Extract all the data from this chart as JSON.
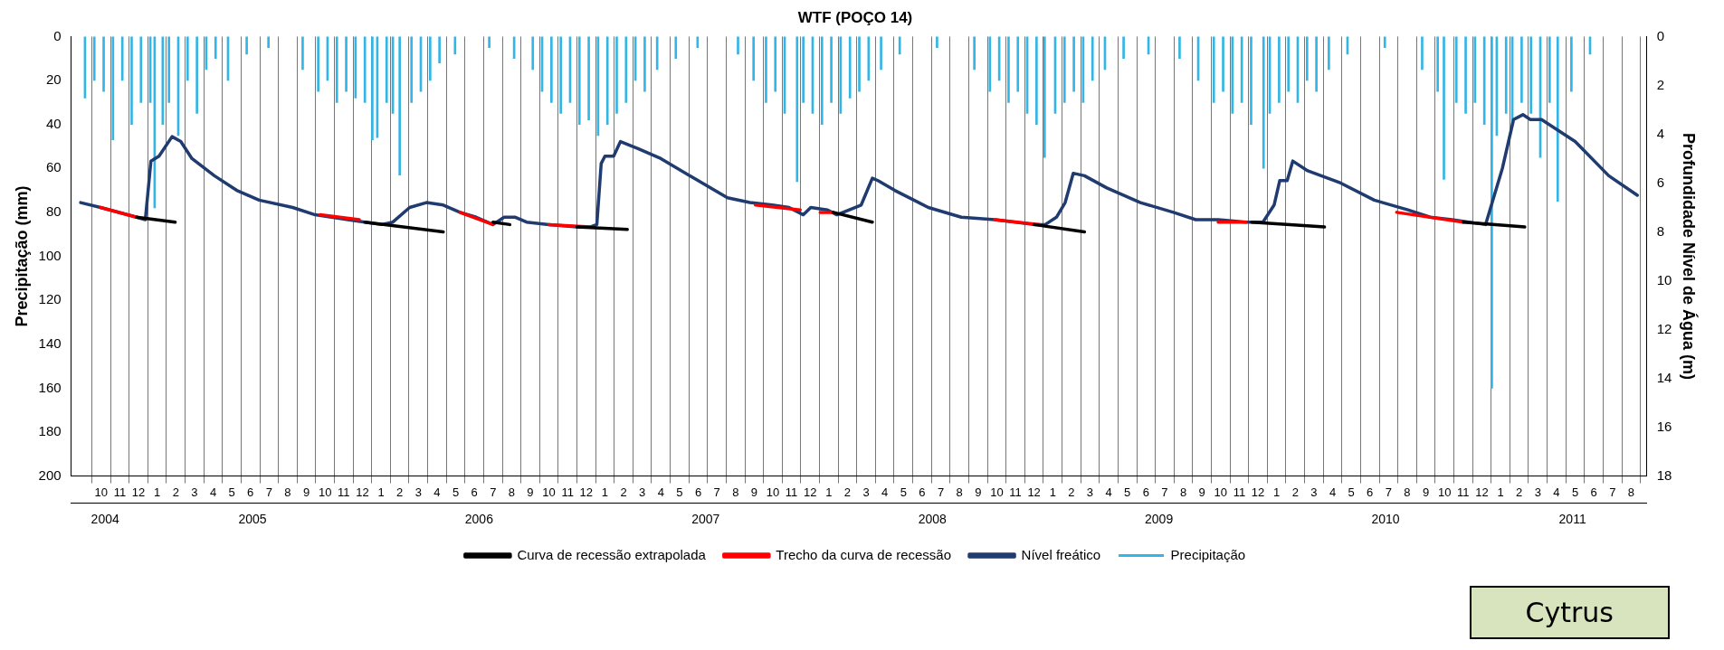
{
  "chart_data": {
    "type": "line",
    "title": "WTF (POÇO 14)",
    "ylabel": "Precipitação (mm)",
    "y2label": "Profundidade Nível de Água (m)",
    "xlim": [
      "2004-09-13",
      "2011-08-26"
    ],
    "ylim": [
      200,
      0
    ],
    "yticks": [
      0,
      20,
      40,
      60,
      80,
      100,
      120,
      140,
      160,
      180,
      200
    ],
    "y2lim": [
      18,
      0
    ],
    "y2ticks": [
      0,
      2,
      4,
      6,
      8,
      10,
      12,
      14,
      16,
      18
    ],
    "xticks": [
      {
        "value": "2004-10-16",
        "label": "10"
      },
      {
        "value": "2004-11-16",
        "label": "11"
      },
      {
        "value": "2004-12-16",
        "label": "12"
      },
      {
        "value": "2005-01-16",
        "label": "1"
      },
      {
        "value": "2005-02-16",
        "label": "2"
      },
      {
        "value": "2005-03-16",
        "label": "3"
      },
      {
        "value": "2005-04-16",
        "label": "4"
      },
      {
        "value": "2005-05-16",
        "label": "5"
      },
      {
        "value": "2005-06-16",
        "label": "6"
      },
      {
        "value": "2005-07-16",
        "label": "7"
      },
      {
        "value": "2005-08-16",
        "label": "8"
      },
      {
        "value": "2005-09-16",
        "label": "9"
      },
      {
        "value": "2005-10-16",
        "label": "10"
      },
      {
        "value": "2005-11-16",
        "label": "11"
      },
      {
        "value": "2005-12-16",
        "label": "12"
      },
      {
        "value": "2006-01-16",
        "label": "1"
      },
      {
        "value": "2006-02-16",
        "label": "2"
      },
      {
        "value": "2006-03-16",
        "label": "3"
      },
      {
        "value": "2006-04-16",
        "label": "4"
      },
      {
        "value": "2006-05-16",
        "label": "5"
      },
      {
        "value": "2006-06-16",
        "label": "6"
      },
      {
        "value": "2006-07-16",
        "label": "7"
      },
      {
        "value": "2006-08-16",
        "label": "8"
      },
      {
        "value": "2006-09-16",
        "label": "9"
      },
      {
        "value": "2006-10-16",
        "label": "10"
      },
      {
        "value": "2006-11-16",
        "label": "11"
      },
      {
        "value": "2006-12-16",
        "label": "12"
      },
      {
        "value": "2007-01-16",
        "label": "1"
      },
      {
        "value": "2007-02-16",
        "label": "2"
      },
      {
        "value": "2007-03-16",
        "label": "3"
      },
      {
        "value": "2007-04-16",
        "label": "4"
      },
      {
        "value": "2007-05-16",
        "label": "5"
      },
      {
        "value": "2007-06-16",
        "label": "6"
      },
      {
        "value": "2007-07-16",
        "label": "7"
      },
      {
        "value": "2007-08-16",
        "label": "8"
      },
      {
        "value": "2007-09-16",
        "label": "9"
      },
      {
        "value": "2007-10-16",
        "label": "10"
      },
      {
        "value": "2007-11-16",
        "label": "11"
      },
      {
        "value": "2007-12-16",
        "label": "12"
      },
      {
        "value": "2008-01-16",
        "label": "1"
      },
      {
        "value": "2008-02-16",
        "label": "2"
      },
      {
        "value": "2008-03-16",
        "label": "3"
      },
      {
        "value": "2008-04-16",
        "label": "4"
      },
      {
        "value": "2008-05-16",
        "label": "5"
      },
      {
        "value": "2008-06-16",
        "label": "6"
      },
      {
        "value": "2008-07-16",
        "label": "7"
      },
      {
        "value": "2008-08-16",
        "label": "8"
      },
      {
        "value": "2008-09-16",
        "label": "9"
      },
      {
        "value": "2008-10-16",
        "label": "10"
      },
      {
        "value": "2008-11-16",
        "label": "11"
      },
      {
        "value": "2008-12-16",
        "label": "12"
      },
      {
        "value": "2009-01-16",
        "label": "1"
      },
      {
        "value": "2009-02-16",
        "label": "2"
      },
      {
        "value": "2009-03-16",
        "label": "3"
      },
      {
        "value": "2009-04-16",
        "label": "4"
      },
      {
        "value": "2009-05-16",
        "label": "5"
      },
      {
        "value": "2009-06-16",
        "label": "6"
      },
      {
        "value": "2009-07-16",
        "label": "7"
      },
      {
        "value": "2009-08-16",
        "label": "8"
      },
      {
        "value": "2009-09-16",
        "label": "9"
      },
      {
        "value": "2009-10-16",
        "label": "10"
      },
      {
        "value": "2009-11-16",
        "label": "11"
      },
      {
        "value": "2009-12-16",
        "label": "12"
      },
      {
        "value": "2010-01-16",
        "label": "1"
      },
      {
        "value": "2010-02-16",
        "label": "2"
      },
      {
        "value": "2010-03-16",
        "label": "3"
      },
      {
        "value": "2010-04-16",
        "label": "4"
      },
      {
        "value": "2010-05-16",
        "label": "5"
      },
      {
        "value": "2010-06-16",
        "label": "6"
      },
      {
        "value": "2010-07-16",
        "label": "7"
      },
      {
        "value": "2010-08-16",
        "label": "8"
      },
      {
        "value": "2010-09-16",
        "label": "9"
      },
      {
        "value": "2010-10-16",
        "label": "10"
      },
      {
        "value": "2010-11-16",
        "label": "11"
      },
      {
        "value": "2010-12-16",
        "label": "12"
      },
      {
        "value": "2011-01-16",
        "label": "1"
      },
      {
        "value": "2011-02-16",
        "label": "2"
      },
      {
        "value": "2011-03-16",
        "label": "3"
      },
      {
        "value": "2011-04-16",
        "label": "4"
      },
      {
        "value": "2011-05-16",
        "label": "5"
      },
      {
        "value": "2011-06-16",
        "label": "6"
      },
      {
        "value": "2011-07-16",
        "label": "7"
      },
      {
        "value": "2011-08-16",
        "label": "8"
      }
    ],
    "x2lim": [
      "2004-09-13",
      "2011-08-26"
    ],
    "x2ticks": [
      {
        "value": "2004-11-07",
        "label": "2004"
      },
      {
        "value": "2005-07-01",
        "label": "2005"
      },
      {
        "value": "2006-07-01",
        "label": "2006"
      },
      {
        "value": "2007-07-01",
        "label": "2007"
      },
      {
        "value": "2008-07-01",
        "label": "2008"
      },
      {
        "value": "2009-07-01",
        "label": "2009"
      },
      {
        "value": "2010-07-01",
        "label": "2010"
      },
      {
        "value": "2011-04-28",
        "label": "2011"
      }
    ],
    "grid": "x",
    "legend": "bottom",
    "annotations": [
      "Cytrus"
    ],
    "series": [
      {
        "name": "Precipitação",
        "type": "bar",
        "color": "#33b5e5",
        "axis": "y",
        "x": [
          "2004-09-20",
          "2004-10-05",
          "2004-10-20",
          "2004-11-05",
          "2004-11-20",
          "2004-12-05",
          "2004-12-20",
          "2005-01-05",
          "2005-01-12",
          "2005-01-25",
          "2005-02-05",
          "2005-02-20",
          "2005-03-05",
          "2005-03-20",
          "2005-04-05",
          "2005-04-20",
          "2005-05-10",
          "2005-06-10",
          "2005-07-15",
          "2005-09-10",
          "2005-10-05",
          "2005-10-20",
          "2005-11-05",
          "2005-11-20",
          "2005-12-05",
          "2005-12-20",
          "2006-01-02",
          "2006-01-10",
          "2006-01-25",
          "2006-02-05",
          "2006-02-16",
          "2006-03-05",
          "2006-03-20",
          "2006-04-05",
          "2006-04-20",
          "2006-05-15",
          "2006-07-10",
          "2006-08-20",
          "2006-09-20",
          "2006-10-05",
          "2006-10-20",
          "2006-11-05",
          "2006-11-20",
          "2006-12-05",
          "2006-12-20",
          "2007-01-05",
          "2007-01-20",
          "2007-02-05",
          "2007-02-20",
          "2007-03-05",
          "2007-03-20",
          "2007-04-10",
          "2007-05-10",
          "2007-06-15",
          "2007-08-20",
          "2007-09-15",
          "2007-10-05",
          "2007-10-20",
          "2007-11-05",
          "2007-11-25",
          "2007-12-05",
          "2007-12-20",
          "2008-01-05",
          "2008-01-20",
          "2008-02-05",
          "2008-02-20",
          "2008-03-05",
          "2008-03-20",
          "2008-04-10",
          "2008-05-10",
          "2008-07-10",
          "2008-09-10",
          "2008-10-05",
          "2008-10-20",
          "2008-11-05",
          "2008-11-20",
          "2008-12-05",
          "2008-12-20",
          "2009-01-03",
          "2009-01-20",
          "2009-02-05",
          "2009-02-20",
          "2009-03-05",
          "2009-03-20",
          "2009-04-10",
          "2009-05-10",
          "2009-06-20",
          "2009-08-10",
          "2009-09-10",
          "2009-10-05",
          "2009-10-20",
          "2009-11-05",
          "2009-11-20",
          "2009-12-05",
          "2009-12-25",
          "2010-01-05",
          "2010-01-20",
          "2010-02-05",
          "2010-02-20",
          "2010-03-05",
          "2010-03-20",
          "2010-04-10",
          "2010-05-10",
          "2010-07-10",
          "2010-09-10",
          "2010-10-05",
          "2010-10-15",
          "2010-11-05",
          "2010-11-20",
          "2010-12-05",
          "2010-12-20",
          "2011-01-02",
          "2011-01-10",
          "2011-01-25",
          "2011-02-05",
          "2011-02-20",
          "2011-03-05",
          "2011-03-20",
          "2011-04-05",
          "2011-04-18",
          "2011-05-10",
          "2011-06-10"
        ],
        "values": [
          28,
          20,
          25,
          47,
          20,
          40,
          30,
          30,
          78,
          40,
          30,
          45,
          20,
          35,
          15,
          10,
          20,
          8,
          5,
          15,
          25,
          20,
          30,
          25,
          28,
          30,
          47,
          46,
          30,
          35,
          63,
          30,
          25,
          20,
          12,
          8,
          5,
          10,
          15,
          25,
          30,
          35,
          30,
          40,
          38,
          45,
          40,
          35,
          30,
          20,
          25,
          15,
          10,
          5,
          8,
          20,
          30,
          25,
          35,
          66,
          30,
          35,
          40,
          30,
          35,
          28,
          25,
          20,
          15,
          8,
          5,
          15,
          25,
          20,
          30,
          25,
          35,
          40,
          55,
          35,
          30,
          25,
          30,
          20,
          15,
          10,
          8,
          10,
          20,
          30,
          25,
          35,
          30,
          40,
          60,
          35,
          30,
          25,
          30,
          20,
          25,
          15,
          8,
          5,
          15,
          25,
          65,
          30,
          35,
          30,
          40,
          160,
          45,
          35,
          40,
          30,
          35,
          55,
          30,
          75,
          25,
          8
        ]
      },
      {
        "name": "Nível freático",
        "type": "line",
        "color": "#1f3b70",
        "axis": "y2",
        "x": [
          "2004-09-13",
          "2004-10-15",
          "2004-12-13",
          "2004-12-27",
          "2005-01-06",
          "2005-01-19",
          "2005-02-10",
          "2005-02-24",
          "2005-03-12",
          "2005-04-18",
          "2005-05-24",
          "2005-06-30",
          "2005-08-24",
          "2005-09-30",
          "2005-11-23",
          "2005-12-20",
          "2006-01-17",
          "2006-02-05",
          "2006-03-02",
          "2006-03-29",
          "2006-04-26",
          "2006-05-23",
          "2006-06-19",
          "2006-07-16",
          "2006-08-04",
          "2006-08-22",
          "2006-09-10",
          "2006-10-16",
          "2006-12-01",
          "2006-12-22",
          "2007-01-03",
          "2007-01-10",
          "2007-01-16",
          "2007-01-30",
          "2007-02-11",
          "2007-03-10",
          "2007-04-16",
          "2007-06-09",
          "2007-08-03",
          "2007-09-09",
          "2007-10-15",
          "2007-11-12",
          "2007-12-05",
          "2007-12-17",
          "2008-01-14",
          "2008-01-29",
          "2008-03-08",
          "2008-03-26",
          "2008-04-05",
          "2008-05-02",
          "2008-06-26",
          "2008-08-19",
          "2008-10-13",
          "2008-12-16",
          "2009-01-04",
          "2009-01-22",
          "2009-02-06",
          "2009-02-19",
          "2009-03-07",
          "2009-04-13",
          "2009-06-07",
          "2009-07-30",
          "2009-09-06",
          "2009-10-12",
          "2009-11-27",
          "2009-12-24",
          "2010-01-12",
          "2010-01-21",
          "2010-02-03",
          "2010-02-12",
          "2010-03-06",
          "2010-04-29",
          "2010-06-23",
          "2010-08-17",
          "2010-09-23",
          "2010-10-28",
          "2010-12-22",
          "2011-01-19",
          "2011-02-07",
          "2011-02-22",
          "2011-03-04",
          "2011-03-22",
          "2011-05-16",
          "2011-07-10",
          "2011-08-26"
        ],
        "values": [
          6.8,
          7.0,
          7.4,
          7.5,
          5.1,
          4.9,
          4.1,
          4.3,
          5.0,
          5.7,
          6.3,
          6.7,
          7.0,
          7.3,
          7.5,
          7.6,
          7.7,
          7.6,
          7.0,
          6.8,
          6.9,
          7.2,
          7.4,
          7.7,
          7.4,
          7.4,
          7.6,
          7.7,
          7.8,
          7.8,
          7.7,
          5.2,
          4.9,
          4.9,
          4.3,
          4.6,
          5.0,
          5.8,
          6.6,
          6.8,
          6.9,
          7.0,
          7.3,
          7.0,
          7.1,
          7.3,
          6.9,
          5.8,
          5.9,
          6.3,
          7.0,
          7.4,
          7.5,
          7.7,
          7.7,
          7.4,
          6.8,
          5.6,
          5.7,
          6.2,
          6.8,
          7.2,
          7.5,
          7.5,
          7.6,
          7.6,
          6.9,
          5.9,
          5.9,
          5.1,
          5.5,
          6.0,
          6.7,
          7.1,
          7.4,
          7.5,
          7.7,
          5.4,
          3.4,
          3.2,
          3.4,
          3.4,
          4.3,
          5.7,
          6.5
        ]
      },
      {
        "name": "Trecho da curva de recessão",
        "type": "line",
        "color": "#ff0000",
        "axis": "y2",
        "x": [
          "2004-10-15",
          "2004-12-13",
          "2005-09-01",
          "2005-10-08",
          "2005-12-11",
          "2006-03-01",
          "2006-05-23",
          "2006-07-16",
          "2006-09-01",
          "2006-10-16",
          "2006-12-22",
          "2007-06-01",
          "2007-09-18",
          "2007-11-30",
          "2007-12-15",
          "2008-01-02",
          "2008-01-23",
          "2008-06-01",
          "2008-10-13",
          "2008-12-25",
          "2009-06-01",
          "2009-10-12",
          "2009-11-27",
          "2010-03-01",
          "2010-07-29",
          "2010-11-16"
        ],
        "values": [
          7.0,
          7.4,
          null,
          7.3,
          7.5,
          null,
          7.2,
          7.7,
          null,
          7.7,
          7.8,
          null,
          6.9,
          7.1,
          null,
          7.2,
          7.2,
          null,
          7.5,
          7.7,
          null,
          7.6,
          7.6,
          null,
          7.2,
          7.6
        ]
      },
      {
        "name": "Curva de recessão extrapolada",
        "type": "line",
        "color": "#000000",
        "axis": "y2",
        "x": [
          "2004-12-13",
          "2005-02-15",
          "2005-06-01",
          "2005-12-20",
          "2006-04-26",
          "2006-06-01",
          "2006-07-16",
          "2006-08-13",
          "2006-10-01",
          "2006-12-01",
          "2007-02-22",
          "2007-06-01",
          "2008-01-23",
          "2008-03-26",
          "2008-06-01",
          "2008-12-16",
          "2009-03-07",
          "2009-06-01",
          "2009-12-06",
          "2010-04-03",
          "2010-06-01",
          "2010-11-16",
          "2011-02-25"
        ],
        "values": [
          7.4,
          7.6,
          null,
          7.6,
          8.0,
          null,
          7.6,
          7.7,
          null,
          7.8,
          7.9,
          null,
          7.2,
          7.6,
          null,
          7.7,
          8.0,
          null,
          7.6,
          7.8,
          null,
          7.6,
          7.8
        ]
      }
    ]
  }
}
